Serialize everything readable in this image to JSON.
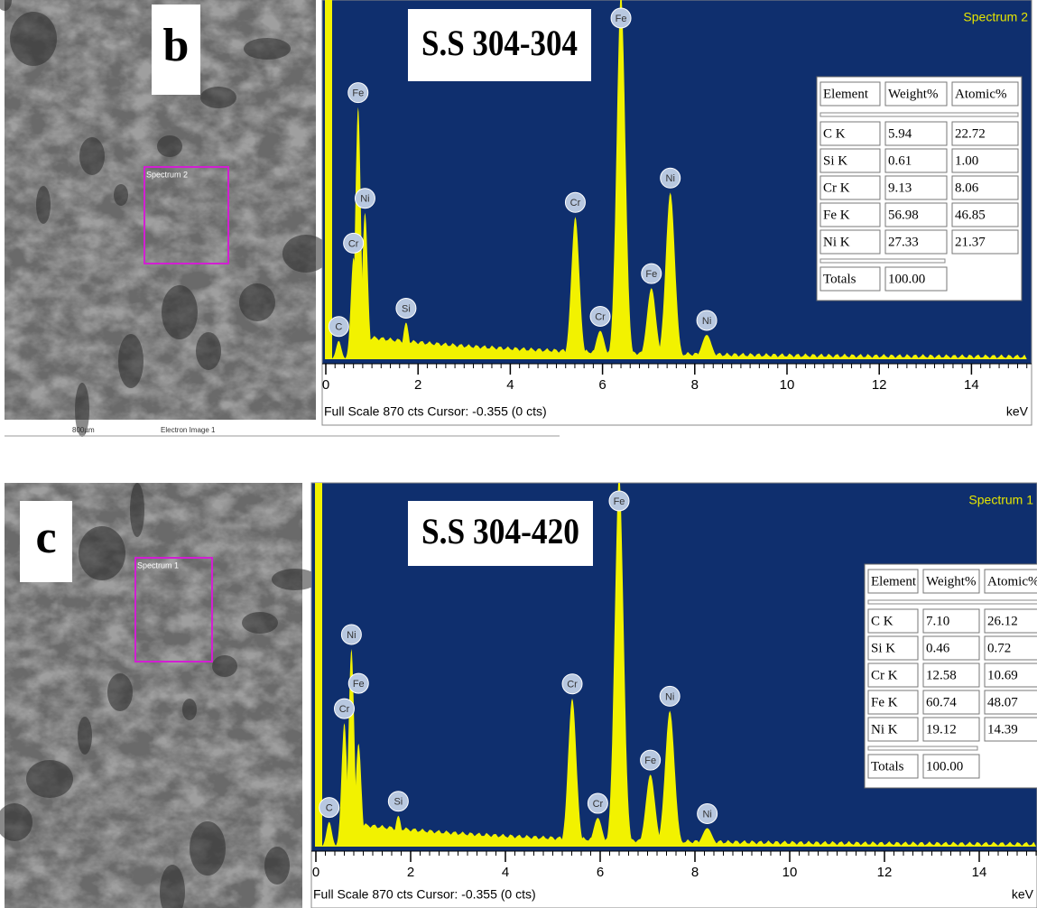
{
  "panels": [
    {
      "label": "b",
      "sample": "S.S 304-304",
      "spectrum": "Spectrum 2",
      "scale_bar": "800µm",
      "image_label": "Electron Image 1",
      "xlim": [
        0,
        15.3
      ],
      "ylim": [
        0,
        870
      ],
      "xticks": [
        0,
        2,
        4,
        6,
        8,
        10,
        12,
        14
      ],
      "x_unit": "keV",
      "footer": "Full Scale 870 cts Cursor: -0.355  (0 cts)",
      "peaks": [
        {
          "label": "C",
          "energy": 0.28,
          "counts": 45
        },
        {
          "label": "Fe",
          "energy": 0.7,
          "counts": 620
        },
        {
          "label": "Cr",
          "energy": 0.6,
          "counts": 250
        },
        {
          "label": "Ni",
          "energy": 0.85,
          "counts": 360
        },
        {
          "label": "Si",
          "energy": 1.74,
          "counts": 90
        },
        {
          "label": "Cr",
          "energy": 5.41,
          "counts": 350
        },
        {
          "label": "Cr",
          "energy": 5.95,
          "counts": 70
        },
        {
          "label": "Fe",
          "energy": 6.4,
          "counts": 900
        },
        {
          "label": "Fe",
          "energy": 7.06,
          "counts": 175
        },
        {
          "label": "Ni",
          "energy": 7.47,
          "counts": 410
        },
        {
          "label": "Ni",
          "energy": 8.26,
          "counts": 60
        }
      ],
      "table": {
        "header": [
          "Element",
          "Weight%",
          "Atomic%"
        ],
        "rows": [
          [
            "C K",
            "5.94",
            "22.72"
          ],
          [
            "Si K",
            "0.61",
            "1.00"
          ],
          [
            "Cr K",
            "9.13",
            "8.06"
          ],
          [
            "Fe K",
            "56.98",
            "46.85"
          ],
          [
            "Ni K",
            "27.33",
            "21.37"
          ]
        ],
        "totals": [
          "Totals",
          "100.00"
        ]
      }
    },
    {
      "label": "c",
      "sample": "S.S 304-420",
      "spectrum": "Spectrum 1",
      "xlim": [
        0,
        15.3
      ],
      "ylim": [
        0,
        870
      ],
      "xticks": [
        0,
        2,
        4,
        6,
        8,
        10,
        12,
        14
      ],
      "x_unit": "keV",
      "footer": "Full Scale 870 cts Cursor: -0.355  (0 cts)",
      "peaks": [
        {
          "label": "C",
          "energy": 0.28,
          "counts": 60
        },
        {
          "label": "Cr",
          "energy": 0.6,
          "counts": 300
        },
        {
          "label": "Ni",
          "energy": 0.75,
          "counts": 480
        },
        {
          "label": "Fe",
          "energy": 0.9,
          "counts": 250
        },
        {
          "label": "Si",
          "energy": 1.74,
          "counts": 75
        },
        {
          "label": "Cr",
          "energy": 5.41,
          "counts": 360
        },
        {
          "label": "Cr",
          "energy": 5.95,
          "counts": 70
        },
        {
          "label": "Fe",
          "energy": 6.4,
          "counts": 900
        },
        {
          "label": "Fe",
          "energy": 7.06,
          "counts": 175
        },
        {
          "label": "Ni",
          "energy": 7.47,
          "counts": 330
        },
        {
          "label": "Ni",
          "energy": 8.26,
          "counts": 45
        }
      ],
      "table": {
        "header": [
          "Element",
          "Weight%",
          "Atomic%"
        ],
        "rows": [
          [
            "C K",
            "7.10",
            "26.12"
          ],
          [
            "Si K",
            "0.46",
            "0.72"
          ],
          [
            "Cr K",
            "12.58",
            "10.69"
          ],
          [
            "Fe K",
            "60.74",
            "48.07"
          ],
          [
            "Ni K",
            "19.12",
            "14.39"
          ]
        ],
        "totals": [
          "Totals",
          "100.00"
        ]
      }
    }
  ]
}
